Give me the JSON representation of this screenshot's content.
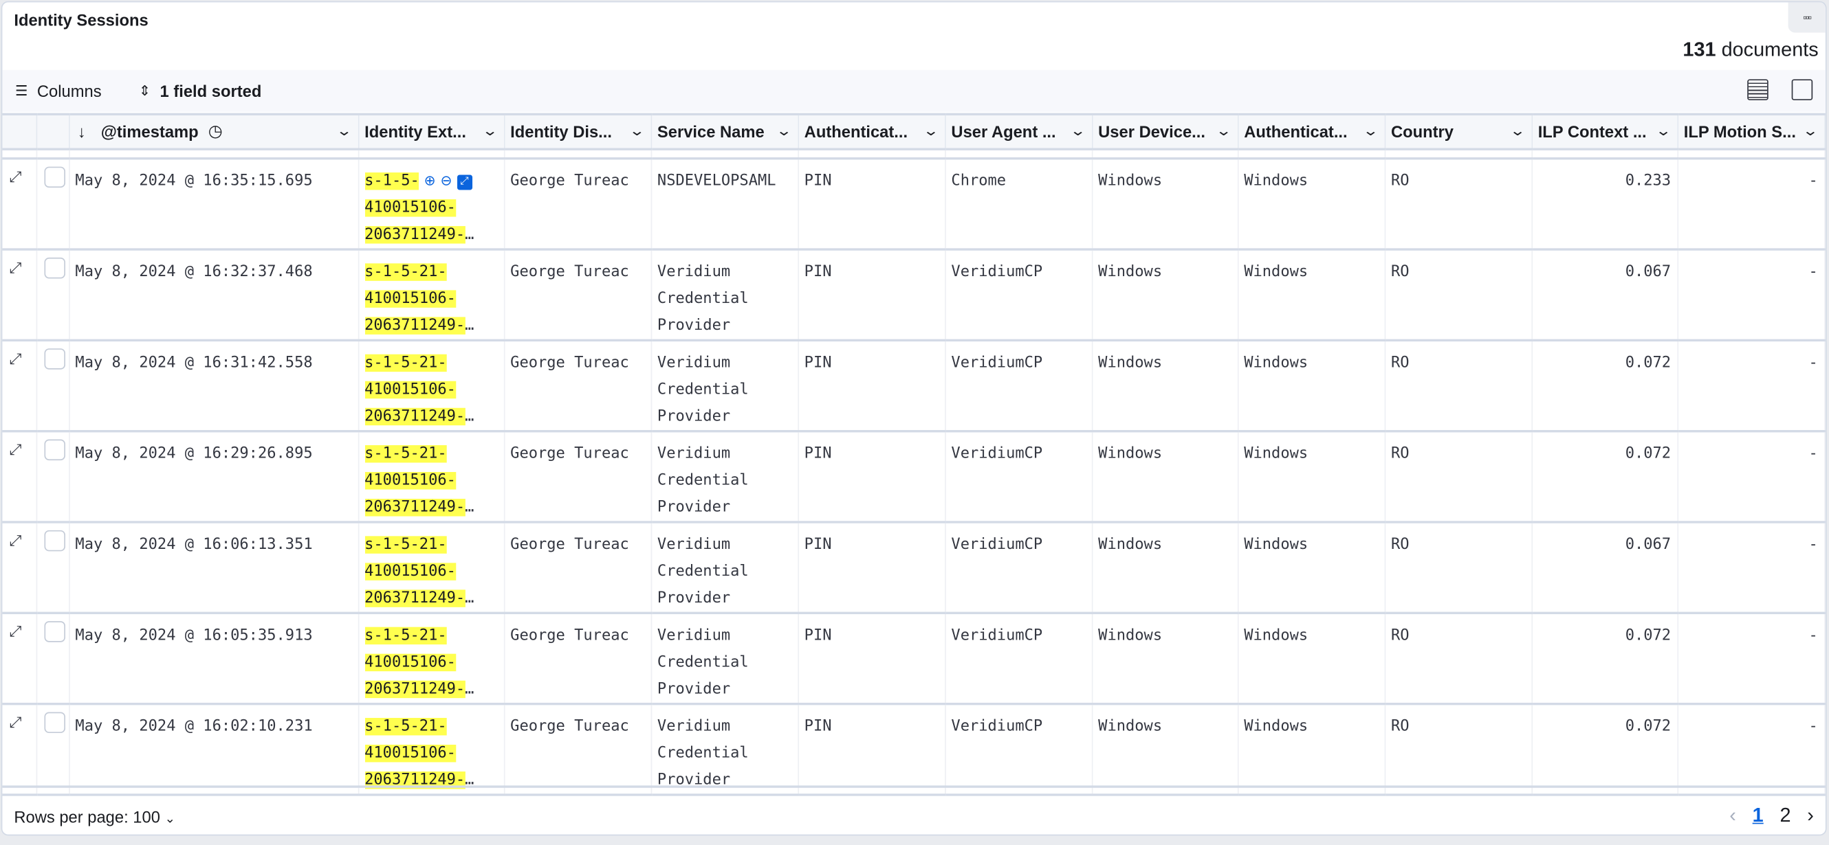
{
  "panel": {
    "title": "Identity Sessions",
    "doc_count": "131",
    "doc_label": "documents",
    "menu_icon": "ellipsis-boxes-icon"
  },
  "toolbar": {
    "columns_label": "Columns",
    "sort_label": "1 field sorted"
  },
  "columns": [
    "@timestamp",
    "Identity Ext...",
    "Identity Dis...",
    "Service Name",
    "Authenticat...",
    "User Agent ...",
    "User Device...",
    "Authenticat...",
    "Country",
    "ILP Context ...",
    "ILP Motion S..."
  ],
  "rows": [
    {
      "timestamp": "May 8, 2024 @ 16:35:15.695",
      "identity_ext": [
        "s-1-5-",
        "410015106-",
        "2063711249-"
      ],
      "identity_display": "George Tureac",
      "service": "NSDEVELOPSAML",
      "auth": "PIN",
      "user_agent": "Chrome",
      "user_device": "Windows",
      "auth2": "Windows",
      "country": "RO",
      "ilp_context": "0.233",
      "ilp_motion": "-"
    },
    {
      "timestamp": "May 8, 2024 @ 16:32:37.468",
      "identity_ext": [
        "s-1-5-21-",
        "410015106-",
        "2063711249-"
      ],
      "identity_display": "George Tureac",
      "service": "Veridium Credential Provider",
      "auth": "PIN",
      "user_agent": "VeridiumCP",
      "user_device": "Windows",
      "auth2": "Windows",
      "country": "RO",
      "ilp_context": "0.067",
      "ilp_motion": "-"
    },
    {
      "timestamp": "May 8, 2024 @ 16:31:42.558",
      "identity_ext": [
        "s-1-5-21-",
        "410015106-",
        "2063711249-"
      ],
      "identity_display": "George Tureac",
      "service": "Veridium Credential Provider",
      "auth": "PIN",
      "user_agent": "VeridiumCP",
      "user_device": "Windows",
      "auth2": "Windows",
      "country": "RO",
      "ilp_context": "0.072",
      "ilp_motion": "-"
    },
    {
      "timestamp": "May 8, 2024 @ 16:29:26.895",
      "identity_ext": [
        "s-1-5-21-",
        "410015106-",
        "2063711249-"
      ],
      "identity_display": "George Tureac",
      "service": "Veridium Credential Provider",
      "auth": "PIN",
      "user_agent": "VeridiumCP",
      "user_device": "Windows",
      "auth2": "Windows",
      "country": "RO",
      "ilp_context": "0.072",
      "ilp_motion": "-"
    },
    {
      "timestamp": "May 8, 2024 @ 16:06:13.351",
      "identity_ext": [
        "s-1-5-21-",
        "410015106-",
        "2063711249-"
      ],
      "identity_display": "George Tureac",
      "service": "Veridium Credential Provider",
      "auth": "PIN",
      "user_agent": "VeridiumCP",
      "user_device": "Windows",
      "auth2": "Windows",
      "country": "RO",
      "ilp_context": "0.067",
      "ilp_motion": "-"
    },
    {
      "timestamp": "May 8, 2024 @ 16:05:35.913",
      "identity_ext": [
        "s-1-5-21-",
        "410015106-",
        "2063711249-"
      ],
      "identity_display": "George Tureac",
      "service": "Veridium Credential Provider",
      "auth": "PIN",
      "user_agent": "VeridiumCP",
      "user_device": "Windows",
      "auth2": "Windows",
      "country": "RO",
      "ilp_context": "0.072",
      "ilp_motion": "-"
    },
    {
      "timestamp": "May 8, 2024 @ 16:02:10.231",
      "identity_ext": [
        "s-1-5-21-",
        "410015106-",
        "2063711249-"
      ],
      "identity_display": "George Tureac",
      "service": "Veridium Credential Provider",
      "auth": "PIN",
      "user_agent": "VeridiumCP",
      "user_device": "Windows",
      "auth2": "Windows",
      "country": "RO",
      "ilp_context": "0.072",
      "ilp_motion": "-"
    }
  ],
  "footer": {
    "rows_per_page": "Rows per page: 100",
    "pages": [
      "1",
      "2"
    ],
    "current_page": "1"
  },
  "colors": {
    "highlight": "#ffff4f",
    "accent": "#0b64dd"
  }
}
